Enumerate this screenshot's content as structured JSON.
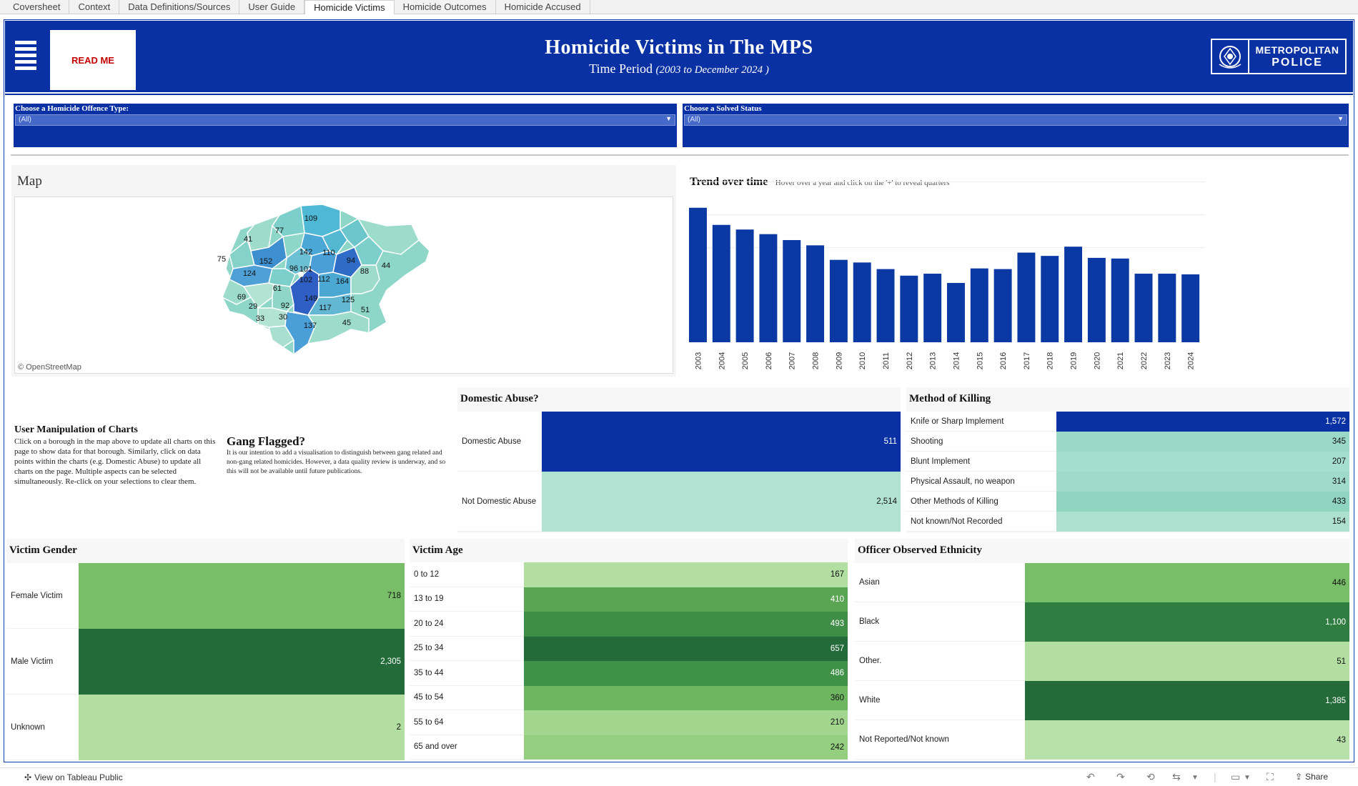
{
  "tabs": [
    {
      "label": "Coversheet",
      "active": false
    },
    {
      "label": "Context",
      "active": false
    },
    {
      "label": "Data Definitions/Sources",
      "active": false
    },
    {
      "label": "User Guide",
      "active": false
    },
    {
      "label": "Homicide Victims",
      "active": true
    },
    {
      "label": "Homicide Outcomes",
      "active": false
    },
    {
      "label": "Homicide Accused",
      "active": false
    }
  ],
  "header": {
    "readme_label": "READ ME",
    "title": "Homicide Victims in The MPS",
    "subtitle_prefix": "Time Period",
    "subtitle_range": "(2003 to December 2024 )",
    "logo_line1": "METROPOLITAN",
    "logo_line2": "POLICE"
  },
  "filters": {
    "offence": {
      "label": "Choose a Homicide Offence Type:",
      "value": "(All)"
    },
    "solved": {
      "label": "Choose a Solved Status",
      "value": "(All)"
    }
  },
  "map": {
    "title": "Map",
    "credit": "© OpenStreetMap",
    "borough_labels": [
      "109",
      "77",
      "41",
      "142",
      "110",
      "94",
      "75",
      "152",
      "96",
      "101",
      "88",
      "44",
      "124",
      "102",
      "112",
      "164",
      "61",
      "69",
      "149",
      "125",
      "29",
      "92",
      "117",
      "51",
      "33",
      "30",
      "137",
      "45"
    ]
  },
  "trend": {
    "title": "Trend over time",
    "hint": "Hover over a year and click on the '+' to reveal quarters"
  },
  "text_panel": {
    "um_title": "User Manipulation of Charts",
    "um_body": "Click on a borough in the map above to update all charts on this page to show data for that borough.  Similarly, click on data points within the charts (e.g. Domestic Abuse) to update all charts on the page. Multiple aspects can be selected simultaneously. Re-click on your selections to clear them.",
    "gf_title": "Gang Flagged?",
    "gf_body": "It is our intention to add a visualisation to distinguish between gang related and non-gang related homicides.  However, a data quality review is underway, and so this will not be available until future publications."
  },
  "domestic": {
    "title": "Domestic Abuse?",
    "rows": [
      {
        "label": "Domestic Abuse",
        "value": "511",
        "color": "#0a31a3"
      },
      {
        "label": "Not Domestic Abuse",
        "value": "2,514",
        "color": "#b2e2d2"
      }
    ]
  },
  "method": {
    "title": "Method of Killing",
    "rows": [
      {
        "label": "Knife or Sharp Implement",
        "value": "1,572",
        "color": "#0a31a3"
      },
      {
        "label": "Shooting",
        "value": "345",
        "color": "#9ad9c6"
      },
      {
        "label": "Blunt Implement",
        "value": "207",
        "color": "#a6decd"
      },
      {
        "label": "Physical Assault, no weapon",
        "value": "314",
        "color": "#9fdbc8"
      },
      {
        "label": "Other Methods of Killing",
        "value": "433",
        "color": "#8fd4bf"
      },
      {
        "label": "Not known/Not Recorded",
        "value": "154",
        "color": "#aee0d0"
      }
    ]
  },
  "gender": {
    "title": "Victim Gender",
    "rows": [
      {
        "label": "Female Victim",
        "value": "718",
        "color": "#78be68"
      },
      {
        "label": "Male Victim",
        "value": "2,305",
        "color": "#236b38"
      },
      {
        "label": "Unknown",
        "value": "2",
        "color": "#b2dea2"
      }
    ]
  },
  "age": {
    "title": "Victim Age",
    "rows": [
      {
        "label": "0 to 12",
        "value": "167",
        "color": "#b2dea2"
      },
      {
        "label": "13 to 19",
        "value": "410",
        "color": "#5aa554"
      },
      {
        "label": "20 to 24",
        "value": "493",
        "color": "#3f8e47"
      },
      {
        "label": "25 to 34",
        "value": "657",
        "color": "#236b38"
      },
      {
        "label": "35 to 44",
        "value": "486",
        "color": "#3f9147"
      },
      {
        "label": "45 to 54",
        "value": "360",
        "color": "#6eb760"
      },
      {
        "label": "55 to 64",
        "value": "210",
        "color": "#a2d68f"
      },
      {
        "label": "65 and over",
        "value": "242",
        "color": "#94cf80"
      }
    ]
  },
  "ethnicity": {
    "title": "Officer Observed Ethnicity",
    "rows": [
      {
        "label": "Asian",
        "value": "446",
        "color": "#78be68"
      },
      {
        "label": "Black",
        "value": "1,100",
        "color": "#2f7d40"
      },
      {
        "label": "Other.",
        "value": "51",
        "color": "#b2dea2"
      },
      {
        "label": "White",
        "value": "1,385",
        "color": "#236b38"
      },
      {
        "label": "Not Reported/Not known",
        "value": "43",
        "color": "#b8e1a9"
      }
    ]
  },
  "chart_data": {
    "type": "bar",
    "title": "Trend over time",
    "categories": [
      "2003",
      "2004",
      "2005",
      "2006",
      "2007",
      "2008",
      "2009",
      "2010",
      "2011",
      "2012",
      "2013",
      "2014",
      "2015",
      "2016",
      "2017",
      "2018",
      "2019",
      "2020",
      "2021",
      "2022",
      "2023",
      "2024"
    ],
    "values": [
      204,
      178,
      171,
      164,
      155,
      147,
      125,
      121,
      111,
      101,
      104,
      90,
      112,
      111,
      136,
      131,
      145,
      128,
      127,
      104,
      104,
      103
    ],
    "ylim": [
      0,
      220
    ],
    "bar_color": "#0a39a3",
    "grid": true
  },
  "footer": {
    "tableau_link": "View on Tableau Public",
    "share": "Share"
  }
}
